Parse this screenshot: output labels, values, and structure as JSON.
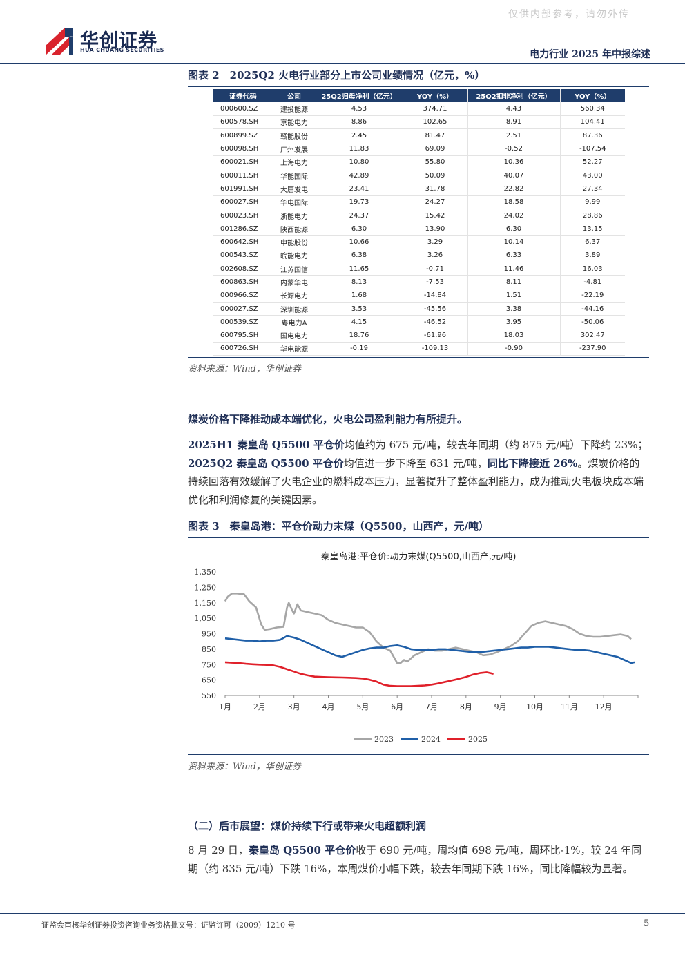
{
  "watermark": "仅供内部参考，请勿外传",
  "logo": {
    "cn": "华创证券",
    "en": "HUA CHUANG SECURITIES"
  },
  "header": {
    "title": "电力行业 2025 年中报综述"
  },
  "figure2": {
    "title": "图表 2　2025Q2 火电行业部分上市公司业绩情况（亿元，%）",
    "columns": [
      "证券代码",
      "公司",
      "25Q2归母净利（亿元）",
      "YOY（%）",
      "25Q2扣非净利（亿元）",
      "YOY（%）"
    ],
    "rows": [
      [
        "000600.SZ",
        "建投能源",
        "4.53",
        "374.71",
        "4.43",
        "560.34"
      ],
      [
        "600578.SH",
        "京能电力",
        "8.86",
        "102.65",
        "8.91",
        "104.41"
      ],
      [
        "600899.SZ",
        "赣能股份",
        "2.45",
        "81.47",
        "2.51",
        "87.36"
      ],
      [
        "600098.SH",
        "广州发展",
        "11.83",
        "69.09",
        "-0.52",
        "-107.54"
      ],
      [
        "600021.SH",
        "上海电力",
        "10.80",
        "55.80",
        "10.36",
        "52.27"
      ],
      [
        "600011.SH",
        "华能国际",
        "42.89",
        "50.09",
        "40.07",
        "43.00"
      ],
      [
        "601991.SH",
        "大唐发电",
        "23.41",
        "31.78",
        "22.82",
        "27.34"
      ],
      [
        "600027.SH",
        "华电国际",
        "19.73",
        "24.27",
        "18.58",
        "9.99"
      ],
      [
        "600023.SH",
        "浙能电力",
        "24.37",
        "15.42",
        "24.02",
        "28.86"
      ],
      [
        "001286.SZ",
        "陕西能源",
        "6.30",
        "13.90",
        "6.30",
        "13.15"
      ],
      [
        "600642.SH",
        "申能股份",
        "10.66",
        "3.29",
        "10.14",
        "6.37"
      ],
      [
        "000543.SZ",
        "皖能电力",
        "6.38",
        "3.26",
        "6.33",
        "3.89"
      ],
      [
        "002608.SZ",
        "江苏国信",
        "11.65",
        "-0.71",
        "11.46",
        "16.03"
      ],
      [
        "600863.SH",
        "内蒙华电",
        "8.13",
        "-7.53",
        "8.11",
        "-4.81"
      ],
      [
        "000966.SZ",
        "长源电力",
        "1.68",
        "-14.84",
        "1.51",
        "-22.19"
      ],
      [
        "000027.SZ",
        "深圳能源",
        "3.53",
        "-45.56",
        "3.38",
        "-44.16"
      ],
      [
        "000539.SZ",
        "粤电力A",
        "4.15",
        "-46.52",
        "3.95",
        "-50.06"
      ],
      [
        "600795.SH",
        "国电电力",
        "18.76",
        "-61.96",
        "18.03",
        "302.47"
      ],
      [
        "600726.SH",
        "华电能源",
        "-0.19",
        "-109.13",
        "-0.90",
        "-237.90"
      ]
    ],
    "source": "资料来源：Wind，华创证券"
  },
  "section1": {
    "heading": "煤炭价格下降推动成本端优化，火电公司盈利能力有所提升。",
    "para_b1": "2025H1 秦皇岛 Q5500 平仓价",
    "para_t1": "均值约为 675 元/吨，较去年同期（约 875 元/吨）下降约 23%；",
    "para_b2": "2025Q2 秦皇岛 Q5500 平仓价",
    "para_t2": "均值进一步下降至 631 元/吨，",
    "para_b3": "同比下降接近 26%",
    "para_t3": "。煤炭价格的持续回落有效缓解了火电企业的燃料成本压力，显著提升了整体盈利能力，成为推动火电板块成本端优化和利润修复的关键因素。"
  },
  "figure3": {
    "title": "图表 3　秦皇岛港：平仓价动力末煤（Q5500，山西产，元/吨）",
    "source": "资料来源：Wind，华创证券"
  },
  "chart_data": {
    "type": "line",
    "title": "秦皇岛港:平仓价:动力末煤(Q5500,山西产,元/吨)",
    "x_tick_labels": [
      "1月",
      "2月",
      "3月",
      "4月",
      "5月",
      "6月",
      "7月",
      "8月",
      "9月",
      "10月",
      "11月",
      "12月"
    ],
    "y_tick_labels": [
      "1,350",
      "1,250",
      "1,150",
      "1,050",
      "950",
      "850",
      "750",
      "650",
      "550"
    ],
    "ylim": [
      550,
      1350
    ],
    "x_unit": "month (1 = start of January)",
    "legend_position": "bottom",
    "series": [
      {
        "name": "2023",
        "color": "#a6a6a6",
        "x": [
          1.0,
          1.08,
          1.2,
          1.35,
          1.55,
          1.7,
          1.9,
          2.05,
          2.15,
          2.3,
          2.5,
          2.7,
          2.8,
          2.85,
          2.95,
          3.0,
          3.1,
          3.2,
          3.4,
          3.6,
          3.8,
          4.0,
          4.2,
          4.4,
          4.6,
          4.8,
          5.0,
          5.2,
          5.4,
          5.6,
          5.8,
          5.9,
          6.0,
          6.1,
          6.2,
          6.3,
          6.5,
          6.7,
          6.9,
          7.1,
          7.3,
          7.5,
          7.7,
          7.9,
          8.1,
          8.3,
          8.5,
          8.7,
          8.9,
          9.1,
          9.3,
          9.5,
          9.7,
          9.9,
          10.1,
          10.3,
          10.5,
          10.7,
          10.9,
          11.1,
          11.3,
          11.5,
          11.7,
          11.9,
          12.1,
          12.3,
          12.5,
          12.7,
          12.8
        ],
        "values": [
          1160,
          1190,
          1210,
          1210,
          1205,
          1160,
          1120,
          1010,
          975,
          980,
          990,
          995,
          1120,
          1150,
          1100,
          1080,
          1140,
          1100,
          1090,
          1080,
          1070,
          1040,
          1020,
          1010,
          1000,
          990,
          990,
          960,
          900,
          860,
          840,
          800,
          760,
          760,
          780,
          770,
          810,
          830,
          850,
          840,
          840,
          850,
          860,
          850,
          840,
          830,
          810,
          815,
          830,
          850,
          870,
          900,
          950,
          1000,
          1020,
          1030,
          1020,
          1010,
          1000,
          980,
          950,
          935,
          930,
          930,
          935,
          940,
          945,
          935,
          915
        ]
      },
      {
        "name": "2024",
        "color": "#1f5fa8",
        "x": [
          1.0,
          1.2,
          1.4,
          1.6,
          1.8,
          2.0,
          2.2,
          2.4,
          2.6,
          2.8,
          3.0,
          3.2,
          3.4,
          3.6,
          3.8,
          4.0,
          4.2,
          4.4,
          4.6,
          4.8,
          5.0,
          5.2,
          5.4,
          5.6,
          5.8,
          6.0,
          6.2,
          6.4,
          6.6,
          6.8,
          7.0,
          7.2,
          7.4,
          7.6,
          7.8,
          8.0,
          8.2,
          8.4,
          8.6,
          8.8,
          9.0,
          9.2,
          9.4,
          9.6,
          9.8,
          10.0,
          10.2,
          10.4,
          10.6,
          10.8,
          11.0,
          11.2,
          11.4,
          11.6,
          11.8,
          12.0,
          12.2,
          12.4,
          12.6,
          12.8,
          12.9
        ],
        "values": [
          920,
          915,
          910,
          905,
          905,
          900,
          905,
          905,
          910,
          935,
          925,
          910,
          890,
          870,
          850,
          830,
          810,
          800,
          815,
          830,
          845,
          855,
          860,
          860,
          870,
          875,
          865,
          850,
          845,
          845,
          845,
          850,
          850,
          845,
          840,
          835,
          830,
          830,
          835,
          840,
          845,
          850,
          855,
          860,
          860,
          865,
          865,
          865,
          860,
          855,
          850,
          845,
          845,
          840,
          830,
          820,
          810,
          800,
          780,
          760,
          765
        ]
      },
      {
        "name": "2025",
        "color": "#e0202a",
        "x": [
          1.0,
          1.2,
          1.4,
          1.6,
          1.8,
          2.0,
          2.2,
          2.4,
          2.6,
          2.8,
          3.0,
          3.2,
          3.4,
          3.6,
          3.8,
          4.0,
          4.2,
          4.4,
          4.6,
          4.8,
          5.0,
          5.2,
          5.4,
          5.6,
          5.8,
          6.0,
          6.2,
          6.4,
          6.6,
          6.8,
          7.0,
          7.2,
          7.4,
          7.6,
          7.8,
          8.0,
          8.2,
          8.4,
          8.6,
          8.8
        ],
        "values": [
          765,
          762,
          760,
          755,
          752,
          750,
          748,
          745,
          735,
          720,
          705,
          690,
          680,
          672,
          670,
          668,
          667,
          666,
          665,
          663,
          660,
          652,
          640,
          620,
          612,
          610,
          610,
          610,
          612,
          615,
          620,
          628,
          638,
          648,
          658,
          670,
          685,
          695,
          700,
          690
        ]
      }
    ]
  },
  "section2": {
    "heading": "（二）后市展望：煤价持续下行或带来火电超额利润",
    "para_t1": "8 月 29 日，",
    "para_b1": "秦皇岛 Q5500 平仓价",
    "para_t2": "收于 690 元/吨，周均值 698 元/吨，周环比-1%，较 24 年同期（约 835 元/吨）下跌 16%，本周煤价小幅下跌，较去年同期下跌 16%，同比降幅较为显著。"
  },
  "footer": {
    "text": "证监会审核华创证券投资咨询业务资格批文号：证监许可（2009）1210 号",
    "page": "5"
  }
}
